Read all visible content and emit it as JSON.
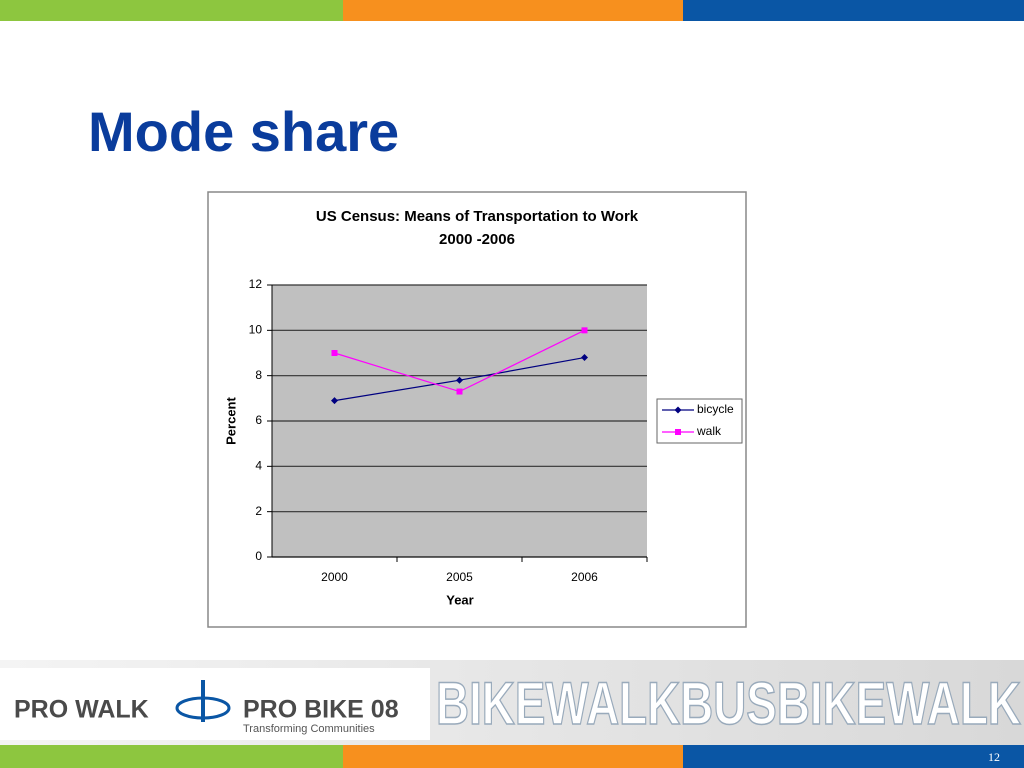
{
  "slide_title": "Mode share",
  "chart_data": {
    "type": "line",
    "title": "US Census: Means of Transportation to Work",
    "subtitle": "2000 -2006",
    "x_label": "Year",
    "y_label": "Percent",
    "categories": [
      "2000",
      "2005",
      "2006"
    ],
    "series": [
      {
        "name": "bicycle",
        "color": "#000080",
        "marker": "diamond",
        "values": [
          6.9,
          7.8,
          8.8
        ]
      },
      {
        "name": "walk",
        "color": "#ff00ff",
        "marker": "square",
        "values": [
          9.0,
          7.3,
          10.0
        ]
      }
    ],
    "ylim": [
      0,
      12
    ],
    "yticks": [
      0,
      2,
      4,
      6,
      8,
      10,
      12
    ],
    "grid": true,
    "legend": "right"
  },
  "footer": {
    "logo_left": "PRO WALK",
    "logo_right": "PRO BIKE 08",
    "tagline": "Transforming Communities",
    "banner": "BIKEWALKBUSBIKEWALK"
  },
  "page_number": "12"
}
